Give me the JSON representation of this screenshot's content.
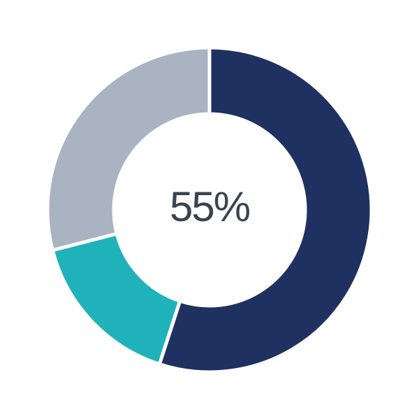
{
  "chart_data": {
    "type": "pie",
    "donut": true,
    "title": "",
    "legend_position": "none",
    "center_label": "55%",
    "center_label_color": "#394450",
    "divider_color": "#ffffff",
    "background_color": "#ffffff",
    "start_angle_deg": 0,
    "direction": "clockwise",
    "slices": [
      {
        "value": 55,
        "color": "#1f3161"
      },
      {
        "value": 16,
        "color": "#1fb2ba"
      },
      {
        "value": 29,
        "color": "#a9b3c1"
      }
    ]
  }
}
